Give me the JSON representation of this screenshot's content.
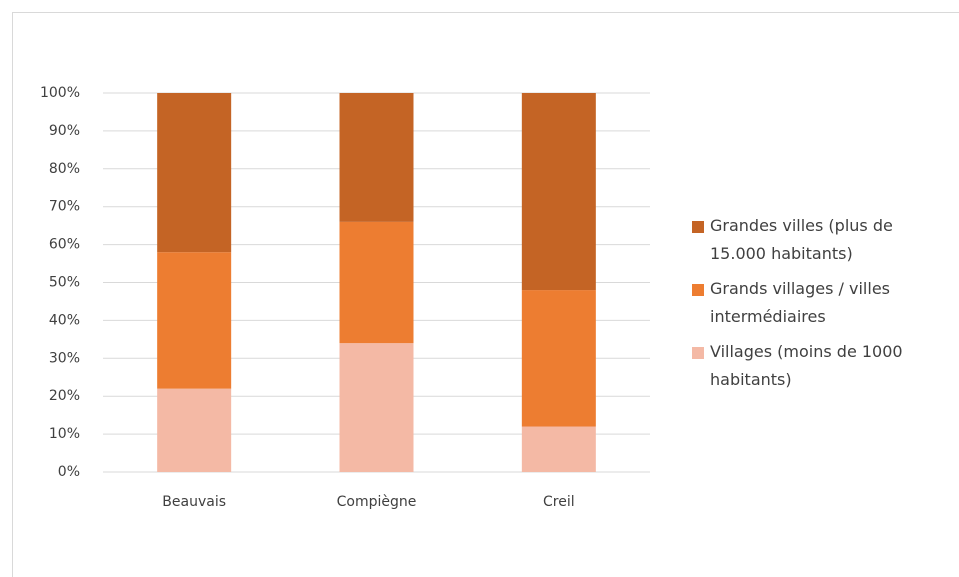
{
  "chart_data": {
    "type": "stacked_bar",
    "categories": [
      "Beauvais",
      "Compiègne",
      "Creil"
    ],
    "series": [
      {
        "name": "Villages (moins de 1000 habitants)",
        "color": "#f4b9a5",
        "values": [
          22,
          34,
          12
        ]
      },
      {
        "name": "Grands villages / villes intermédiaires",
        "color": "#ed7d31",
        "values": [
          36,
          32,
          36
        ]
      },
      {
        "name": "Grandes villes (plus de 15.000 habitants)",
        "color": "#c46425",
        "values": [
          42,
          34,
          52
        ]
      }
    ],
    "ylim": [
      0,
      100
    ],
    "yticks": [
      {
        "value": 0,
        "label": "0%"
      },
      {
        "value": 10,
        "label": "10%"
      },
      {
        "value": 20,
        "label": "20%"
      },
      {
        "value": 30,
        "label": "30%"
      },
      {
        "value": 40,
        "label": "40%"
      },
      {
        "value": 50,
        "label": "50%"
      },
      {
        "value": 60,
        "label": "60%"
      },
      {
        "value": 70,
        "label": "70%"
      },
      {
        "value": 80,
        "label": "80%"
      },
      {
        "value": 90,
        "label": "90%"
      },
      {
        "value": 100,
        "label": "100%"
      }
    ],
    "grid": true,
    "legend": "right"
  }
}
